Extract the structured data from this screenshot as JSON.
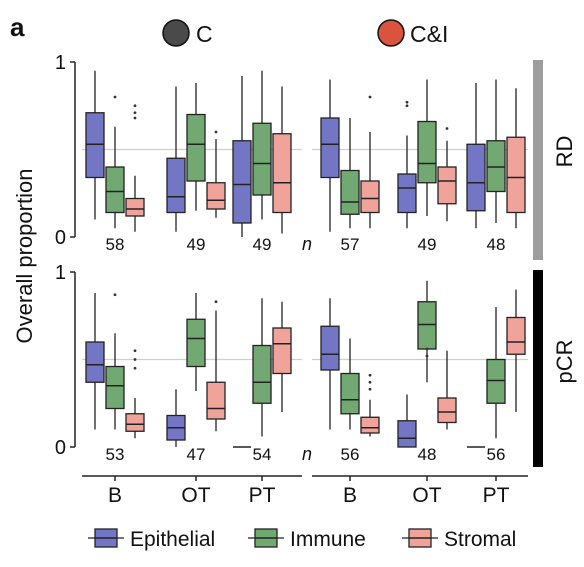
{
  "panel_letter": "a",
  "conditions": [
    {
      "key": "C",
      "label": "C",
      "color": "#4a4a4a"
    },
    {
      "key": "CI",
      "label": "C&I",
      "color": "#d9533f"
    }
  ],
  "ylabel": "Overall proportion",
  "n_label": "n",
  "legend": [
    {
      "label": "Epithelial",
      "color": "#7276c4"
    },
    {
      "label": "Immune",
      "color": "#72a872"
    },
    {
      "label": "Stromal",
      "color": "#f0a39a"
    }
  ],
  "chart_data": {
    "type": "boxplot",
    "categories": [
      "B",
      "OT",
      "PT"
    ],
    "series_names": [
      "Epithelial",
      "Immune",
      "Stromal"
    ],
    "ylim": [
      0,
      1
    ],
    "yticks": [
      0,
      1
    ],
    "reference_line": 0.5,
    "grid": false,
    "legend_position": "bottom",
    "rows": [
      {
        "label": "RD",
        "strip_color": "#9e9e9e",
        "groups": [
          {
            "condition": "C",
            "counts": [
              "58",
              "49",
              "49"
            ],
            "boxes": [
              [
                {
                  "series": "Epithelial",
                  "min": 0.1,
                  "q1": 0.34,
                  "median": 0.53,
                  "q3": 0.71,
                  "max": 0.95
                },
                {
                  "series": "Immune",
                  "min": 0.05,
                  "q1": 0.14,
                  "median": 0.26,
                  "q3": 0.4,
                  "max": 0.63,
                  "outliers": [
                    0.8
                  ]
                },
                {
                  "series": "Stromal",
                  "min": 0.03,
                  "q1": 0.12,
                  "median": 0.16,
                  "q3": 0.22,
                  "max": 0.35,
                  "outliers": [
                    0.68,
                    0.71,
                    0.75
                  ]
                }
              ],
              [
                {
                  "series": "Epithelial",
                  "min": 0.03,
                  "q1": 0.14,
                  "median": 0.23,
                  "q3": 0.45,
                  "max": 0.86
                },
                {
                  "series": "Immune",
                  "min": 0.15,
                  "q1": 0.32,
                  "median": 0.53,
                  "q3": 0.7,
                  "max": 0.88
                },
                {
                  "series": "Stromal",
                  "min": 0.11,
                  "q1": 0.16,
                  "median": 0.21,
                  "q3": 0.31,
                  "max": 0.56,
                  "outliers": [
                    0.6
                  ]
                }
              ],
              [
                {
                  "series": "Epithelial",
                  "min": 0.0,
                  "q1": 0.08,
                  "median": 0.3,
                  "q3": 0.55,
                  "max": 0.92
                },
                {
                  "series": "Immune",
                  "min": 0.1,
                  "q1": 0.24,
                  "median": 0.42,
                  "q3": 0.65,
                  "max": 0.95
                },
                {
                  "series": "Stromal",
                  "min": 0.02,
                  "q1": 0.14,
                  "median": 0.31,
                  "q3": 0.59,
                  "max": 0.86
                }
              ]
            ]
          },
          {
            "condition": "CI",
            "counts": [
              "57",
              "49",
              "48"
            ],
            "boxes": [
              [
                {
                  "series": "Epithelial",
                  "min": 0.03,
                  "q1": 0.34,
                  "median": 0.53,
                  "q3": 0.68,
                  "max": 0.9
                },
                {
                  "series": "Immune",
                  "min": 0.05,
                  "q1": 0.13,
                  "median": 0.2,
                  "q3": 0.38,
                  "max": 0.68
                },
                {
                  "series": "Stromal",
                  "min": 0.05,
                  "q1": 0.14,
                  "median": 0.22,
                  "q3": 0.32,
                  "max": 0.6,
                  "outliers": [
                    0.8
                  ]
                }
              ],
              [
                {
                  "series": "Epithelial",
                  "min": 0.05,
                  "q1": 0.14,
                  "median": 0.28,
                  "q3": 0.36,
                  "max": 0.58,
                  "outliers": [
                    0.75,
                    0.77
                  ]
                },
                {
                  "series": "Immune",
                  "min": 0.12,
                  "q1": 0.31,
                  "median": 0.42,
                  "q3": 0.66,
                  "max": 0.9
                },
                {
                  "series": "Stromal",
                  "min": 0.09,
                  "q1": 0.19,
                  "median": 0.32,
                  "q3": 0.4,
                  "max": 0.55,
                  "outliers": [
                    0.62
                  ]
                }
              ],
              [
                {
                  "series": "Epithelial",
                  "min": 0.05,
                  "q1": 0.15,
                  "median": 0.31,
                  "q3": 0.53,
                  "max": 0.88
                },
                {
                  "series": "Immune",
                  "min": 0.08,
                  "q1": 0.26,
                  "median": 0.4,
                  "q3": 0.55,
                  "max": 0.9
                },
                {
                  "series": "Stromal",
                  "min": 0.05,
                  "q1": 0.14,
                  "median": 0.34,
                  "q3": 0.57,
                  "max": 0.85
                }
              ]
            ]
          }
        ]
      },
      {
        "label": "pCR",
        "strip_color": "#000000",
        "groups": [
          {
            "condition": "C",
            "counts": [
              "53",
              "47",
              "54"
            ],
            "boxes": [
              [
                {
                  "series": "Epithelial",
                  "min": 0.1,
                  "q1": 0.37,
                  "median": 0.47,
                  "q3": 0.6,
                  "max": 0.88
                },
                {
                  "series": "Immune",
                  "min": 0.1,
                  "q1": 0.22,
                  "median": 0.35,
                  "q3": 0.46,
                  "max": 0.65,
                  "outliers": [
                    0.87
                  ]
                },
                {
                  "series": "Stromal",
                  "min": 0.05,
                  "q1": 0.09,
                  "median": 0.13,
                  "q3": 0.19,
                  "max": 0.28,
                  "outliers": [
                    0.45,
                    0.5,
                    0.55
                  ]
                }
              ],
              [
                {
                  "series": "Epithelial",
                  "min": 0.0,
                  "q1": 0.04,
                  "median": 0.11,
                  "q3": 0.18,
                  "max": 0.33
                },
                {
                  "series": "Immune",
                  "min": 0.32,
                  "q1": 0.46,
                  "median": 0.62,
                  "q3": 0.73,
                  "max": 0.88
                },
                {
                  "series": "Stromal",
                  "min": 0.09,
                  "q1": 0.16,
                  "median": 0.22,
                  "q3": 0.37,
                  "max": 0.78,
                  "outliers": [
                    0.83
                  ]
                }
              ],
              [
                {
                  "series": "Epithelial",
                  "min": 0.0,
                  "q1": 0.0,
                  "median": 0.0,
                  "q3": 0.0,
                  "max": 0.0
                },
                {
                  "series": "Immune",
                  "min": 0.06,
                  "q1": 0.25,
                  "median": 0.37,
                  "q3": 0.58,
                  "max": 0.85
                },
                {
                  "series": "Stromal",
                  "min": 0.2,
                  "q1": 0.42,
                  "median": 0.59,
                  "q3": 0.68,
                  "max": 0.83
                }
              ]
            ]
          },
          {
            "condition": "CI",
            "counts": [
              "56",
              "48",
              "56"
            ],
            "boxes": [
              [
                {
                  "series": "Epithelial",
                  "min": 0.1,
                  "q1": 0.44,
                  "median": 0.53,
                  "q3": 0.69,
                  "max": 0.85
                },
                {
                  "series": "Immune",
                  "min": 0.1,
                  "q1": 0.19,
                  "median": 0.27,
                  "q3": 0.42,
                  "max": 0.62
                },
                {
                  "series": "Stromal",
                  "min": 0.06,
                  "q1": 0.08,
                  "median": 0.11,
                  "q3": 0.17,
                  "max": 0.27,
                  "outliers": [
                    0.33,
                    0.37,
                    0.41
                  ]
                }
              ],
              [
                {
                  "series": "Epithelial",
                  "min": 0.0,
                  "q1": 0.0,
                  "median": 0.05,
                  "q3": 0.15,
                  "max": 0.3
                },
                {
                  "series": "Immune",
                  "min": 0.37,
                  "q1": 0.56,
                  "median": 0.7,
                  "q3": 0.83,
                  "max": 0.95,
                  "outliers": [
                    0.52,
                    0.56
                  ]
                },
                {
                  "series": "Stromal",
                  "min": 0.1,
                  "q1": 0.14,
                  "median": 0.2,
                  "q3": 0.28,
                  "max": 0.55
                }
              ],
              [
                {
                  "series": "Epithelial",
                  "min": 0.0,
                  "q1": 0.0,
                  "median": 0.0,
                  "q3": 0.0,
                  "max": 0.0
                },
                {
                  "series": "Immune",
                  "min": 0.05,
                  "q1": 0.25,
                  "median": 0.38,
                  "q3": 0.5,
                  "max": 0.8
                },
                {
                  "series": "Stromal",
                  "min": 0.2,
                  "q1": 0.53,
                  "median": 0.6,
                  "q3": 0.74,
                  "max": 0.9
                }
              ]
            ]
          }
        ]
      }
    ]
  }
}
